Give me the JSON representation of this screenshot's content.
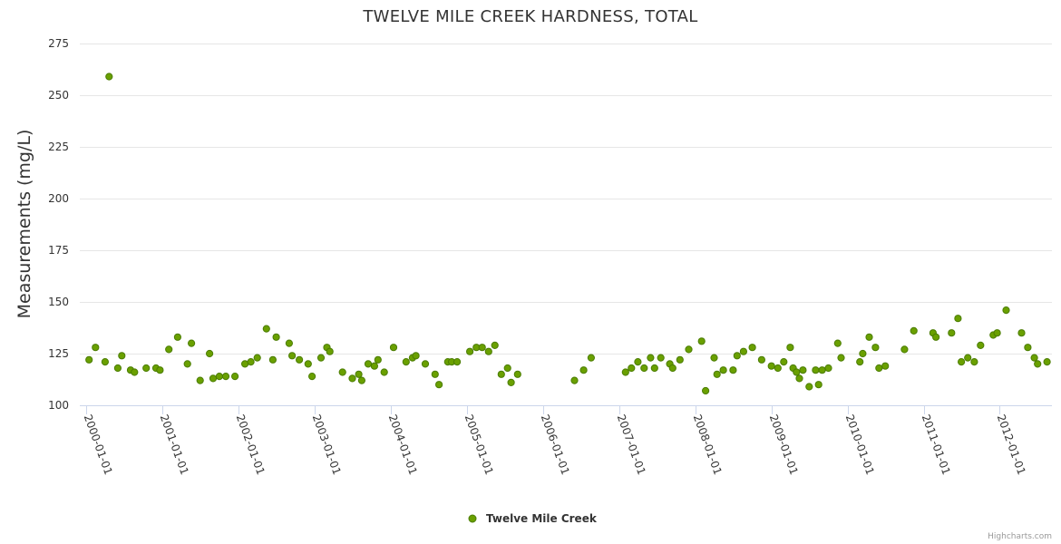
{
  "colors": {
    "series": "#6aa000",
    "series_stroke": "#4a7c00",
    "grid": "#e6e6e6",
    "axis": "#ccd6eb",
    "text": "#333333",
    "credits": "#999999"
  },
  "credits": "Highcharts.com",
  "chart_data": {
    "type": "scatter",
    "title": "TWELVE MILE CREEK HARDNESS, TOTAL",
    "xlabel": "",
    "ylabel": "Measurements (mg/L)",
    "ylim": [
      100,
      275
    ],
    "yticks": [
      100,
      125,
      150,
      175,
      200,
      225,
      250,
      275
    ],
    "xlim": [
      "2000-01-01",
      "2012-08-01"
    ],
    "xticks": [
      "2000-01-01",
      "2001-01-01",
      "2002-01-01",
      "2003-01-01",
      "2004-01-01",
      "2005-01-01",
      "2006-01-01",
      "2007-01-01",
      "2008-01-01",
      "2009-01-01",
      "2010-01-01",
      "2011-01-01",
      "2012-01-01"
    ],
    "grid": true,
    "legend": "bottom-center",
    "series": [
      {
        "name": "Twelve Mile Creek",
        "points": [
          [
            "2000-01-15",
            122
          ],
          [
            "2000-02-15",
            128
          ],
          [
            "2000-04-01",
            121
          ],
          [
            "2000-04-20",
            259
          ],
          [
            "2000-06-01",
            118
          ],
          [
            "2000-06-20",
            124
          ],
          [
            "2000-08-01",
            117
          ],
          [
            "2000-08-20",
            116
          ],
          [
            "2000-10-15",
            118
          ],
          [
            "2000-12-01",
            118
          ],
          [
            "2000-12-20",
            117
          ],
          [
            "2001-02-01",
            127
          ],
          [
            "2001-03-15",
            133
          ],
          [
            "2001-05-01",
            120
          ],
          [
            "2001-05-20",
            130
          ],
          [
            "2001-07-01",
            112
          ],
          [
            "2001-08-15",
            125
          ],
          [
            "2001-09-01",
            113
          ],
          [
            "2001-10-01",
            114
          ],
          [
            "2001-11-01",
            114
          ],
          [
            "2001-12-15",
            114
          ],
          [
            "2002-02-01",
            120
          ],
          [
            "2002-03-01",
            121
          ],
          [
            "2002-04-01",
            123
          ],
          [
            "2002-05-15",
            137
          ],
          [
            "2002-06-15",
            122
          ],
          [
            "2002-07-01",
            133
          ],
          [
            "2002-09-01",
            130
          ],
          [
            "2002-09-15",
            124
          ],
          [
            "2002-10-20",
            122
          ],
          [
            "2002-12-01",
            120
          ],
          [
            "2002-12-20",
            114
          ],
          [
            "2003-02-01",
            123
          ],
          [
            "2003-03-01",
            128
          ],
          [
            "2003-03-15",
            126
          ],
          [
            "2003-05-15",
            116
          ],
          [
            "2003-07-01",
            113
          ],
          [
            "2003-08-01",
            115
          ],
          [
            "2003-08-15",
            112
          ],
          [
            "2003-09-15",
            120
          ],
          [
            "2003-10-15",
            119
          ],
          [
            "2003-11-01",
            122
          ],
          [
            "2003-12-01",
            116
          ],
          [
            "2004-01-15",
            128
          ],
          [
            "2004-03-15",
            121
          ],
          [
            "2004-04-15",
            123
          ],
          [
            "2004-05-01",
            124
          ],
          [
            "2004-06-15",
            120
          ],
          [
            "2004-08-01",
            115
          ],
          [
            "2004-08-20",
            110
          ],
          [
            "2004-10-01",
            121
          ],
          [
            "2004-10-20",
            121
          ],
          [
            "2004-11-15",
            121
          ],
          [
            "2005-01-15",
            126
          ],
          [
            "2005-02-15",
            128
          ],
          [
            "2005-03-15",
            128
          ],
          [
            "2005-04-15",
            126
          ],
          [
            "2005-05-15",
            129
          ],
          [
            "2005-06-15",
            115
          ],
          [
            "2005-07-15",
            118
          ],
          [
            "2005-08-01",
            111
          ],
          [
            "2005-09-01",
            115
          ],
          [
            "2006-06-01",
            112
          ],
          [
            "2006-07-15",
            117
          ],
          [
            "2006-08-20",
            123
          ],
          [
            "2007-02-01",
            116
          ],
          [
            "2007-03-01",
            118
          ],
          [
            "2007-04-01",
            121
          ],
          [
            "2007-05-01",
            118
          ],
          [
            "2007-06-01",
            123
          ],
          [
            "2007-06-20",
            118
          ],
          [
            "2007-07-20",
            123
          ],
          [
            "2007-09-01",
            120
          ],
          [
            "2007-09-15",
            118
          ],
          [
            "2007-10-20",
            122
          ],
          [
            "2007-12-01",
            127
          ],
          [
            "2008-02-01",
            131
          ],
          [
            "2008-02-20",
            107
          ],
          [
            "2008-04-01",
            123
          ],
          [
            "2008-04-15",
            115
          ],
          [
            "2008-05-15",
            117
          ],
          [
            "2008-07-01",
            117
          ],
          [
            "2008-07-20",
            124
          ],
          [
            "2008-08-20",
            126
          ],
          [
            "2008-10-01",
            128
          ],
          [
            "2008-11-15",
            122
          ],
          [
            "2009-01-01",
            119
          ],
          [
            "2009-02-01",
            118
          ],
          [
            "2009-03-01",
            121
          ],
          [
            "2009-04-01",
            128
          ],
          [
            "2009-04-15",
            118
          ],
          [
            "2009-05-01",
            116
          ],
          [
            "2009-05-15",
            113
          ],
          [
            "2009-06-01",
            117
          ],
          [
            "2009-07-01",
            109
          ],
          [
            "2009-08-01",
            117
          ],
          [
            "2009-08-15",
            110
          ],
          [
            "2009-09-01",
            117
          ],
          [
            "2009-10-01",
            118
          ],
          [
            "2009-11-15",
            130
          ],
          [
            "2009-12-01",
            123
          ],
          [
            "2010-03-01",
            121
          ],
          [
            "2010-03-15",
            125
          ],
          [
            "2010-04-15",
            133
          ],
          [
            "2010-05-15",
            128
          ],
          [
            "2010-06-01",
            118
          ],
          [
            "2010-07-01",
            119
          ],
          [
            "2010-10-01",
            127
          ],
          [
            "2010-11-15",
            136
          ],
          [
            "2011-02-15",
            135
          ],
          [
            "2011-03-01",
            133
          ],
          [
            "2011-05-15",
            135
          ],
          [
            "2011-06-15",
            142
          ],
          [
            "2011-07-01",
            121
          ],
          [
            "2011-08-01",
            123
          ],
          [
            "2011-09-01",
            121
          ],
          [
            "2011-10-01",
            129
          ],
          [
            "2011-12-01",
            134
          ],
          [
            "2011-12-20",
            135
          ],
          [
            "2012-02-01",
            146
          ],
          [
            "2012-04-15",
            135
          ],
          [
            "2012-05-15",
            128
          ],
          [
            "2012-06-15",
            123
          ],
          [
            "2012-07-01",
            120
          ],
          [
            "2012-08-15",
            121
          ]
        ]
      }
    ]
  }
}
